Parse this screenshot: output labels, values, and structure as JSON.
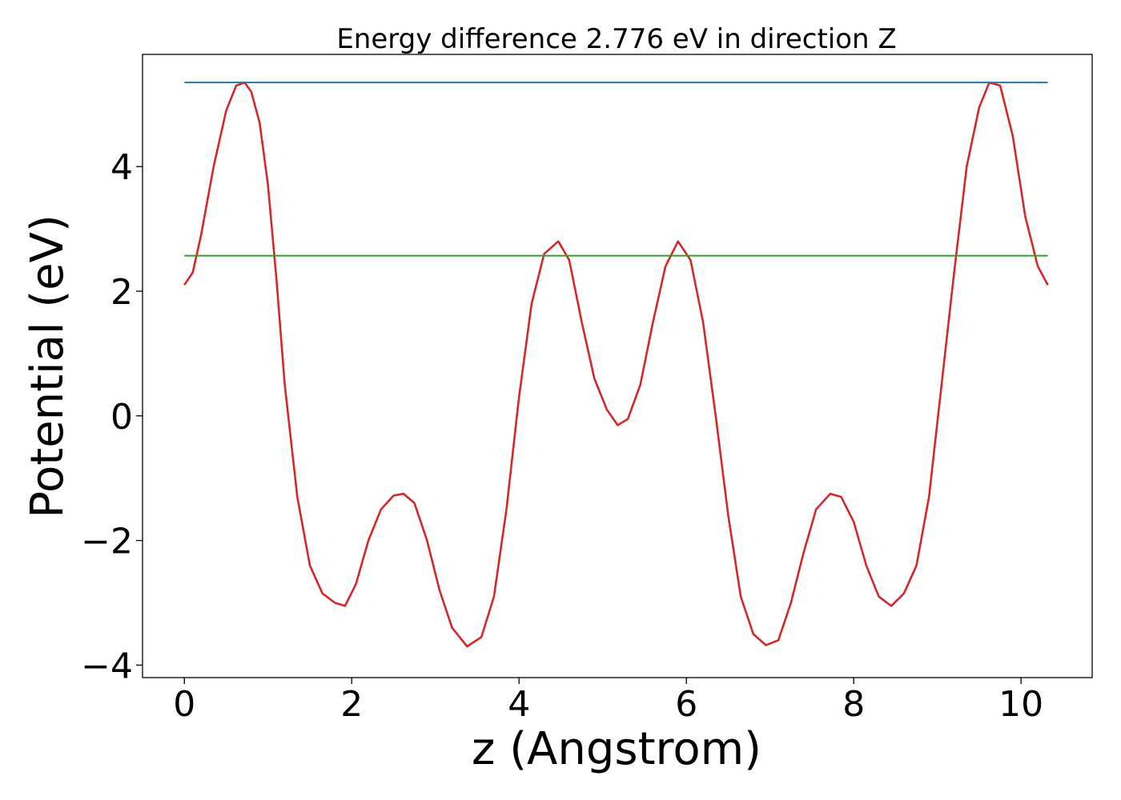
{
  "chart_data": {
    "type": "line",
    "title": "Energy difference 2.776 eV in direction Z",
    "xlabel": "z (Angstrom)",
    "ylabel": "Potential (eV)",
    "xlim": [
      -0.5,
      10.85
    ],
    "ylim": [
      -4.2,
      5.8
    ],
    "xticks": [
      0,
      2,
      4,
      6,
      8,
      10
    ],
    "xtick_labels": [
      "0",
      "2",
      "4",
      "6",
      "8",
      "10"
    ],
    "yticks": [
      -4,
      -2,
      0,
      2,
      4
    ],
    "ytick_labels": [
      "−4",
      "−2",
      "0",
      "2",
      "4"
    ],
    "grid": false,
    "series": [
      {
        "color": "#d62728",
        "x": [
          0.0,
          0.1,
          0.2,
          0.35,
          0.5,
          0.62,
          0.72,
          0.8,
          0.9,
          1.0,
          1.1,
          1.2,
          1.35,
          1.5,
          1.65,
          1.8,
          1.92,
          2.05,
          2.2,
          2.35,
          2.5,
          2.62,
          2.75,
          2.9,
          3.05,
          3.2,
          3.38,
          3.55,
          3.7,
          3.85,
          4.0,
          4.15,
          4.3,
          4.47,
          4.6,
          4.75,
          4.9,
          5.05,
          5.18,
          5.3,
          5.45,
          5.6,
          5.75,
          5.9,
          6.05,
          6.2,
          6.35,
          6.5,
          6.65,
          6.8,
          6.95,
          7.1,
          7.25,
          7.4,
          7.55,
          7.72,
          7.85,
          8.0,
          8.15,
          8.3,
          8.45,
          8.6,
          8.75,
          8.9,
          9.05,
          9.2,
          9.35,
          9.5,
          9.62,
          9.75,
          9.9,
          10.05,
          10.2,
          10.32
        ],
        "y": [
          2.1,
          2.3,
          2.9,
          4.0,
          4.9,
          5.3,
          5.35,
          5.2,
          4.7,
          3.7,
          2.2,
          0.5,
          -1.3,
          -2.4,
          -2.85,
          -3.0,
          -3.05,
          -2.7,
          -2.0,
          -1.5,
          -1.28,
          -1.25,
          -1.4,
          -2.0,
          -2.8,
          -3.4,
          -3.7,
          -3.55,
          -2.9,
          -1.5,
          0.3,
          1.8,
          2.6,
          2.8,
          2.5,
          1.5,
          0.6,
          0.1,
          -0.15,
          -0.05,
          0.5,
          1.5,
          2.4,
          2.8,
          2.5,
          1.5,
          0.0,
          -1.6,
          -2.9,
          -3.5,
          -3.68,
          -3.6,
          -3.0,
          -2.2,
          -1.5,
          -1.25,
          -1.3,
          -1.7,
          -2.4,
          -2.9,
          -3.05,
          -2.85,
          -2.4,
          -1.3,
          0.5,
          2.3,
          4.0,
          4.95,
          5.35,
          5.3,
          4.5,
          3.2,
          2.4,
          2.1
        ]
      },
      {
        "color": "#1f77b4",
        "x": [
          0.0,
          10.32
        ],
        "y": [
          5.35,
          5.35
        ]
      },
      {
        "color": "#2ca02c",
        "x": [
          0.0,
          10.32
        ],
        "y": [
          2.57,
          2.57
        ]
      }
    ]
  }
}
